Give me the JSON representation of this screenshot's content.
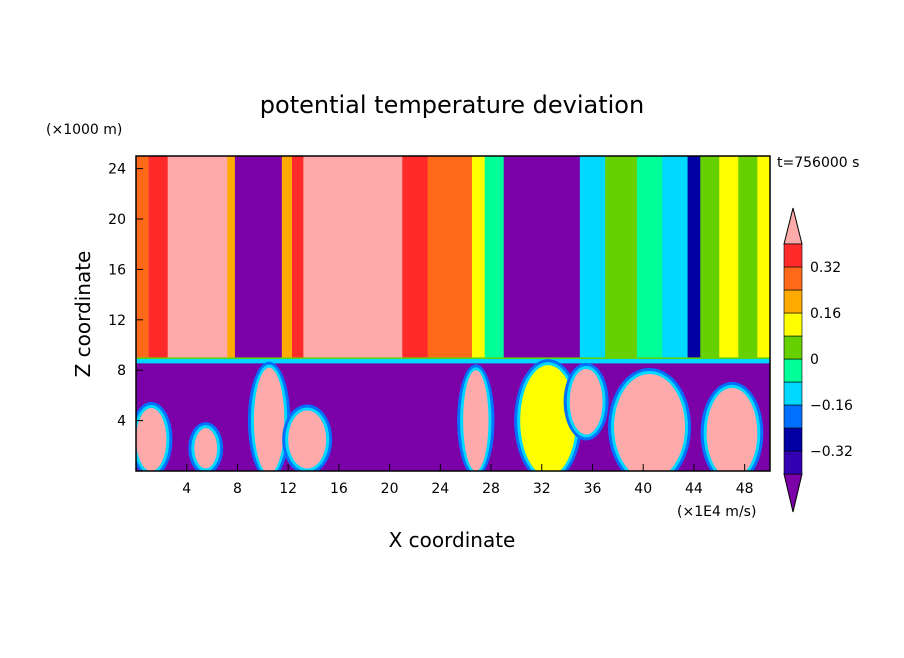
{
  "chart_data": {
    "type": "heatmap",
    "title": "potential temperature deviation",
    "xlabel": "X coordinate",
    "ylabel": "Z coordinate",
    "x_unit": "(×1E4 m/s)",
    "y_unit": "(×1000 m)",
    "time_label": "t=756000 s",
    "xlim": [
      0,
      50
    ],
    "ylim": [
      0,
      25
    ],
    "x_ticks": [
      4,
      8,
      12,
      16,
      20,
      24,
      28,
      32,
      36,
      40,
      44,
      48
    ],
    "y_ticks": [
      4,
      8,
      12,
      16,
      20,
      24
    ],
    "colorbar": {
      "levels": [
        -0.4,
        -0.32,
        -0.24,
        -0.16,
        -0.08,
        0,
        0.08,
        0.16,
        0.24,
        0.32,
        0.4
      ],
      "tick_labels": [
        "0.32",
        "0.16",
        "0",
        "−0.16",
        "−0.32"
      ],
      "tick_values": [
        0.32,
        0.16,
        0,
        -0.16,
        -0.32
      ],
      "colors": [
        "#7B00A8",
        "#3300B2",
        "#0000A5",
        "#0070FF",
        "#00D8FF",
        "#00FF99",
        "#66D000",
        "#FFFF00",
        "#FFAA00",
        "#FF6A1A",
        "#FF2A2A",
        "#FFAAAA"
      ],
      "extend": "both"
    },
    "upper_layer_columns": [
      {
        "x0": 0,
        "x1": 1,
        "level": 0.24
      },
      {
        "x0": 1,
        "x2": 0,
        "x1": 2.5,
        "level": 0.32
      },
      {
        "x0": 2.5,
        "x1": 7.2,
        "level": 0.4
      },
      {
        "x0": 7.2,
        "x1": 7.8,
        "level": 0.16
      },
      {
        "x0": 7.8,
        "x1": 11.5,
        "level": -0.4
      },
      {
        "x0": 11.5,
        "x1": 12.3,
        "level": 0.16
      },
      {
        "x0": 12.3,
        "x1": 13.2,
        "level": 0.32
      },
      {
        "x0": 13.2,
        "x1": 21,
        "level": 0.4
      },
      {
        "x0": 21,
        "x1": 23,
        "level": 0.32
      },
      {
        "x0": 23,
        "x1": 26.5,
        "level": 0.24
      },
      {
        "x0": 26.5,
        "x1": 27.5,
        "level": 0.08
      },
      {
        "x0": 27.5,
        "x1": 29,
        "level": -0.08
      },
      {
        "x0": 29,
        "x1": 35,
        "level": -0.4
      },
      {
        "x0": 35,
        "x1": 37,
        "level": -0.16
      },
      {
        "x0": 37,
        "x1": 39.5,
        "level": 0
      },
      {
        "x0": 39.5,
        "x1": 41.5,
        "level": -0.08
      },
      {
        "x0": 41.5,
        "x1": 43.5,
        "level": -0.16
      },
      {
        "x0": 43.5,
        "x1": 44.5,
        "level": -0.32
      },
      {
        "x0": 44.5,
        "x1": 46,
        "level": 0
      },
      {
        "x0": 46,
        "x1": 47.5,
        "level": 0.08
      },
      {
        "x0": 47.5,
        "x1": 49,
        "level": 0
      },
      {
        "x0": 49,
        "x1": 50,
        "level": 0.08
      }
    ],
    "inversion_height": 8.7,
    "lower_layer_background_level": -0.4
  }
}
